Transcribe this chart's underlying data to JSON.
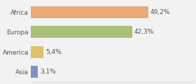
{
  "categories": [
    "Asia",
    "America",
    "Europa",
    "Africa"
  ],
  "values": [
    3.1,
    5.4,
    42.3,
    49.2
  ],
  "labels": [
    "3,1%",
    "5,4%",
    "42,3%",
    "49,2%"
  ],
  "colors": [
    "#8090c4",
    "#dfc06a",
    "#a8c07a",
    "#e8aa78"
  ],
  "xlim": [
    0,
    68
  ],
  "background_color": "#f2f2f2",
  "bar_height": 0.6,
  "label_fontsize": 6.5,
  "tick_fontsize": 6.5
}
